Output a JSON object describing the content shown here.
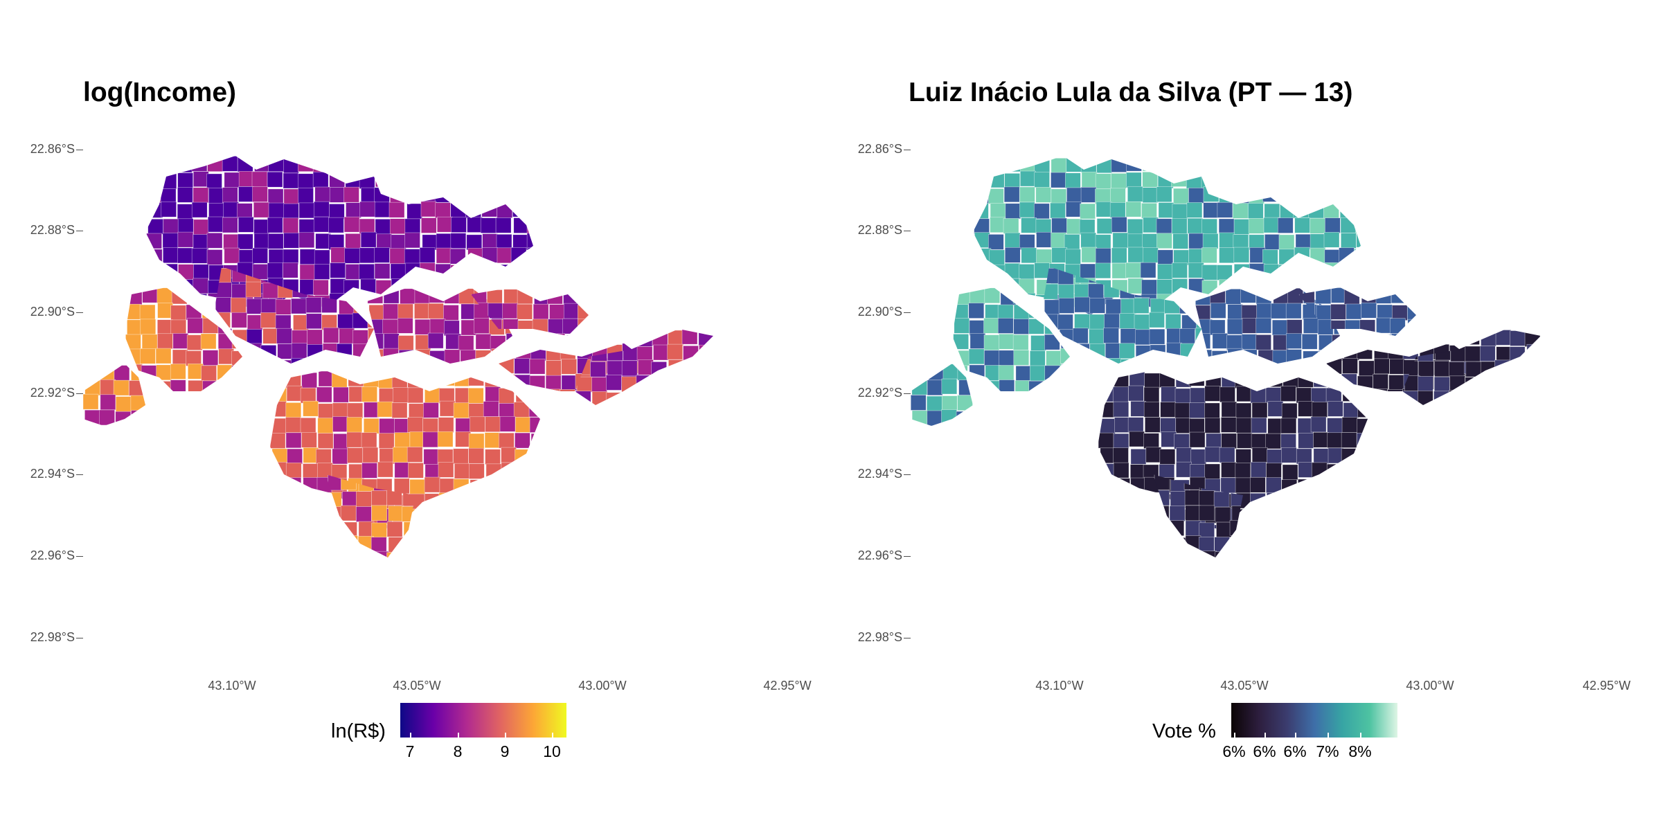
{
  "panels": [
    {
      "title": "log(Income)",
      "legend": {
        "title": "ln(R$)",
        "labels": [
          "7",
          "8",
          "9",
          "10"
        ],
        "colors": [
          "#0d0887",
          "#6a00a8",
          "#b12a90",
          "#e16462",
          "#fca636",
          "#f0f921"
        ]
      },
      "palette": {
        "low": "#4b00a0",
        "mid": "#a6218f",
        "high": "#e06058",
        "top": "#f9a33a",
        "bg": "#7a139c"
      }
    },
    {
      "title": "Luiz Inácio Lula da Silva (PT — 13)",
      "legend": {
        "title": "Vote %",
        "labels": [
          "6%",
          "6%",
          "6%",
          "7%",
          "8%"
        ],
        "colors": [
          "#0b0405",
          "#2d1e3e",
          "#3b3c6e",
          "#3e6ea8",
          "#37a4a4",
          "#4ec3a2",
          "#def5e5"
        ]
      },
      "palette": {
        "low": "#231b36",
        "mid": "#3a5f9e",
        "high": "#47b4ab",
        "top": "#79d3b4",
        "bg": "#3b3a6e"
      }
    }
  ],
  "axes": {
    "y_ticks": [
      "22.86°S",
      "22.88°S",
      "22.90°S",
      "22.92°S",
      "22.94°S",
      "22.96°S",
      "22.98°S"
    ],
    "x_ticks": [
      "43.10°W",
      "43.05°W",
      "43.00°W",
      "42.95°W"
    ]
  },
  "chart_data": [
    {
      "type": "choropleth",
      "title": "log(Income)",
      "legend_title": "ln(R$)",
      "colorbar_ticks": [
        7,
        8,
        9,
        10
      ],
      "color_scale": "plasma",
      "y_ticks": [
        "22.86°S",
        "22.88°S",
        "22.90°S",
        "22.92°S",
        "22.94°S",
        "22.96°S",
        "22.98°S"
      ],
      "x_ticks": [
        "43.10°W",
        "43.05°W",
        "43.00°W",
        "42.95°W"
      ],
      "grid": false
    },
    {
      "type": "choropleth",
      "title": "Luiz Inácio Lula da Silva (PT — 13)",
      "legend_title": "Vote %",
      "colorbar_ticks": [
        "6%",
        "6%",
        "6%",
        "7%",
        "8%"
      ],
      "color_scale": "mako",
      "y_ticks": [
        "22.86°S",
        "22.88°S",
        "22.90°S",
        "22.92°S",
        "22.94°S",
        "22.96°S",
        "22.98°S"
      ],
      "x_ticks": [
        "43.10°W",
        "43.05°W",
        "43.00°W",
        "42.95°W"
      ],
      "grid": false
    }
  ]
}
